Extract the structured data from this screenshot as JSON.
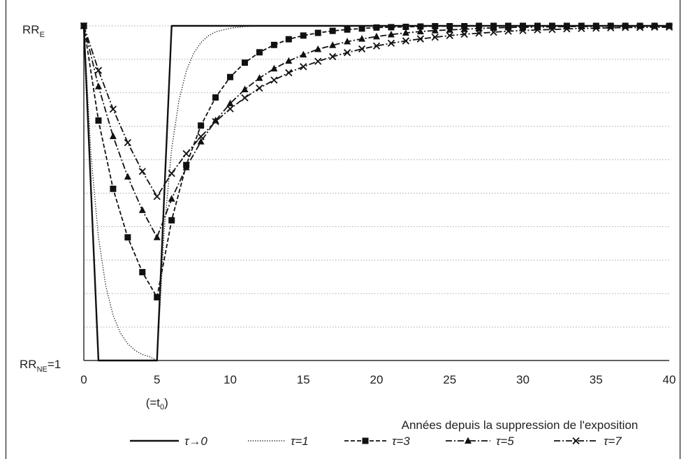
{
  "chart_data": {
    "type": "line",
    "title": "",
    "xlabel": "Années depuis la suppression de l'exposition",
    "ylabel": "",
    "xlim": [
      0,
      40
    ],
    "xticks": [
      "0",
      "5",
      "10",
      "15",
      "20",
      "25",
      "30",
      "35",
      "40"
    ],
    "x_annotation": "(=t0)",
    "y_top_label": {
      "main": "RR",
      "sub": "E"
    },
    "y_bottom_label": {
      "main": "RR",
      "sub": "NE",
      "suffix": "=1"
    },
    "ylim": [
      0,
      1
    ],
    "grid": "horizontal-dotted",
    "legend_position": "bottom",
    "series": [
      {
        "name": "τ→0",
        "style": "solid",
        "marker": "none",
        "points": [
          [
            0,
            1
          ],
          [
            1,
            0
          ],
          [
            5,
            0
          ],
          [
            6,
            1
          ],
          [
            40,
            1
          ]
        ]
      },
      {
        "name": "τ=1",
        "style": "dotted",
        "marker": "none",
        "points": [
          [
            0,
            1
          ],
          [
            0.5,
            0.607
          ],
          [
            1,
            0.368
          ],
          [
            1.5,
            0.223
          ],
          [
            2,
            0.135
          ],
          [
            2.5,
            0.082
          ],
          [
            3,
            0.05
          ],
          [
            3.5,
            0.03
          ],
          [
            4,
            0.018
          ],
          [
            4.5,
            0.011
          ],
          [
            5,
            0
          ],
          [
            5.5,
            0.393
          ],
          [
            6,
            0.632
          ],
          [
            6.5,
            0.777
          ],
          [
            7,
            0.865
          ],
          [
            7.5,
            0.918
          ],
          [
            8,
            0.95
          ],
          [
            8.5,
            0.97
          ],
          [
            9,
            0.982
          ],
          [
            10,
            0.993
          ],
          [
            11,
            0.998
          ],
          [
            12,
            1
          ],
          [
            40,
            1
          ]
        ]
      },
      {
        "name": "τ=3",
        "style": "dashed",
        "marker": "square",
        "points": [
          [
            0,
            1
          ],
          [
            1,
            0.717
          ],
          [
            2,
            0.513
          ],
          [
            3,
            0.368
          ],
          [
            4,
            0.264
          ],
          [
            5,
            0.189
          ],
          [
            6,
            0.419
          ],
          [
            7,
            0.584
          ],
          [
            8,
            0.702
          ],
          [
            9,
            0.786
          ],
          [
            10,
            0.847
          ],
          [
            11,
            0.89
          ],
          [
            12,
            0.921
          ],
          [
            13,
            0.943
          ],
          [
            14,
            0.96
          ],
          [
            15,
            0.971
          ],
          [
            16,
            0.979
          ],
          [
            17,
            0.985
          ],
          [
            18,
            0.989
          ],
          [
            19,
            0.992
          ],
          [
            20,
            0.995
          ],
          [
            21,
            0.996
          ],
          [
            22,
            0.997
          ],
          [
            23,
            0.998
          ],
          [
            24,
            0.999
          ],
          [
            25,
            0.999
          ],
          [
            26,
            0.999
          ],
          [
            27,
            1
          ],
          [
            28,
            1
          ],
          [
            29,
            1
          ],
          [
            30,
            1
          ],
          [
            31,
            1
          ],
          [
            32,
            1
          ],
          [
            33,
            1
          ],
          [
            34,
            1
          ],
          [
            35,
            1
          ],
          [
            36,
            1
          ],
          [
            37,
            1
          ],
          [
            38,
            1
          ],
          [
            39,
            1
          ],
          [
            40,
            1
          ]
        ]
      },
      {
        "name": "τ=5",
        "style": "dashdot",
        "marker": "triangle",
        "points": [
          [
            0,
            1
          ],
          [
            1,
            0.819
          ],
          [
            2,
            0.67
          ],
          [
            3,
            0.549
          ],
          [
            4,
            0.449
          ],
          [
            5,
            0.368
          ],
          [
            6,
            0.483
          ],
          [
            7,
            0.577
          ],
          [
            8,
            0.654
          ],
          [
            9,
            0.717
          ],
          [
            10,
            0.768
          ],
          [
            11,
            0.81
          ],
          [
            12,
            0.844
          ],
          [
            13,
            0.872
          ],
          [
            14,
            0.895
          ],
          [
            15,
            0.914
          ],
          [
            16,
            0.93
          ],
          [
            17,
            0.942
          ],
          [
            18,
            0.953
          ],
          [
            19,
            0.961
          ],
          [
            20,
            0.968
          ],
          [
            21,
            0.974
          ],
          [
            22,
            0.979
          ],
          [
            23,
            0.983
          ],
          [
            24,
            0.986
          ],
          [
            25,
            0.988
          ],
          [
            26,
            0.99
          ],
          [
            27,
            0.992
          ],
          [
            28,
            0.994
          ],
          [
            29,
            0.995
          ],
          [
            30,
            0.996
          ],
          [
            31,
            0.996
          ],
          [
            32,
            0.997
          ],
          [
            33,
            0.998
          ],
          [
            34,
            0.998
          ],
          [
            35,
            0.998
          ],
          [
            36,
            0.999
          ],
          [
            37,
            0.999
          ],
          [
            38,
            0.999
          ],
          [
            39,
            0.999
          ],
          [
            40,
            0.999
          ]
        ]
      },
      {
        "name": "τ=7",
        "style": "dashdot",
        "marker": "x",
        "points": [
          [
            0,
            1
          ],
          [
            1,
            0.867
          ],
          [
            2,
            0.751
          ],
          [
            3,
            0.651
          ],
          [
            4,
            0.565
          ],
          [
            5,
            0.49
          ],
          [
            6,
            0.559
          ],
          [
            7,
            0.618
          ],
          [
            8,
            0.669
          ],
          [
            9,
            0.714
          ],
          [
            10,
            0.752
          ],
          [
            11,
            0.785
          ],
          [
            12,
            0.814
          ],
          [
            13,
            0.838
          ],
          [
            14,
            0.86
          ],
          [
            15,
            0.878
          ],
          [
            16,
            0.894
          ],
          [
            17,
            0.908
          ],
          [
            18,
            0.92
          ],
          [
            19,
            0.931
          ],
          [
            20,
            0.94
          ],
          [
            21,
            0.948
          ],
          [
            22,
            0.955
          ],
          [
            23,
            0.961
          ],
          [
            24,
            0.966
          ],
          [
            25,
            0.971
          ],
          [
            26,
            0.975
          ],
          [
            27,
            0.978
          ],
          [
            28,
            0.981
          ],
          [
            29,
            0.984
          ],
          [
            30,
            0.986
          ],
          [
            31,
            0.988
          ],
          [
            32,
            0.989
          ],
          [
            33,
            0.991
          ],
          [
            34,
            0.992
          ],
          [
            35,
            0.993
          ],
          [
            36,
            0.994
          ],
          [
            37,
            0.995
          ],
          [
            38,
            0.995
          ],
          [
            39,
            0.996
          ],
          [
            40,
            0.996
          ]
        ]
      }
    ]
  }
}
